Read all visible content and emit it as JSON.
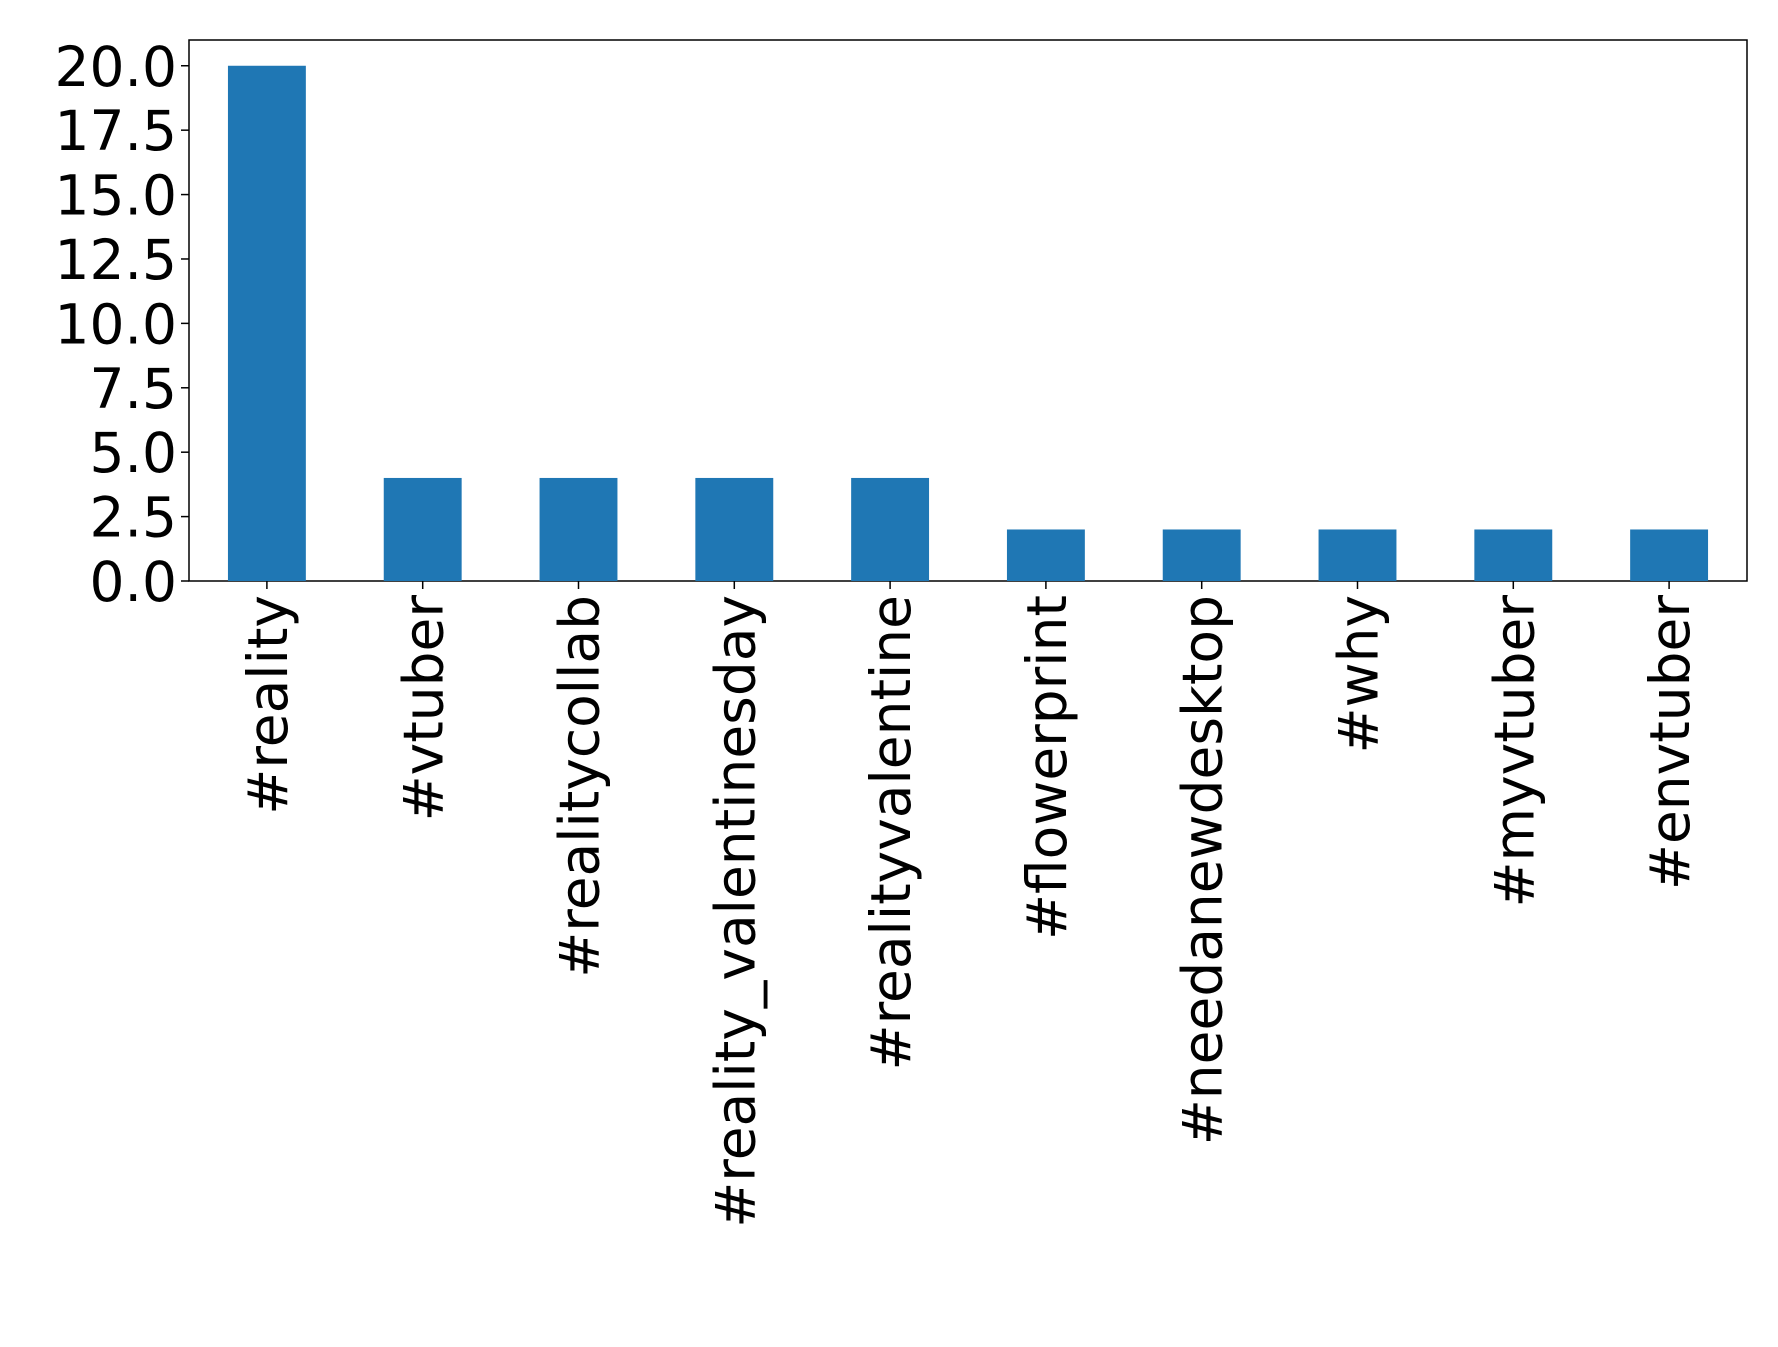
{
  "chart_data": {
    "type": "bar",
    "categories": [
      "#reality",
      "#vtuber",
      "#realitycollab",
      "#reality_valentinesday",
      "#realityvalentine",
      "#flowerprint",
      "#needanewdesktop",
      "#why",
      "#myvtuber",
      "#envtuber"
    ],
    "values": [
      20,
      4,
      4,
      4,
      4,
      2,
      2,
      2,
      2,
      2
    ],
    "color": "#1f77b4",
    "ylim": [
      0,
      21
    ],
    "yticks": [
      {
        "value": 0,
        "label": "0.0"
      },
      {
        "value": 2.5,
        "label": "2.5"
      },
      {
        "value": 5,
        "label": "5.0"
      },
      {
        "value": 7.5,
        "label": "7.5"
      },
      {
        "value": 10,
        "label": "10.0"
      },
      {
        "value": 12.5,
        "label": "12.5"
      },
      {
        "value": 15,
        "label": "15.0"
      },
      {
        "value": 17.5,
        "label": "17.5"
      },
      {
        "value": 20,
        "label": "20.0"
      }
    ],
    "grid": false
  }
}
